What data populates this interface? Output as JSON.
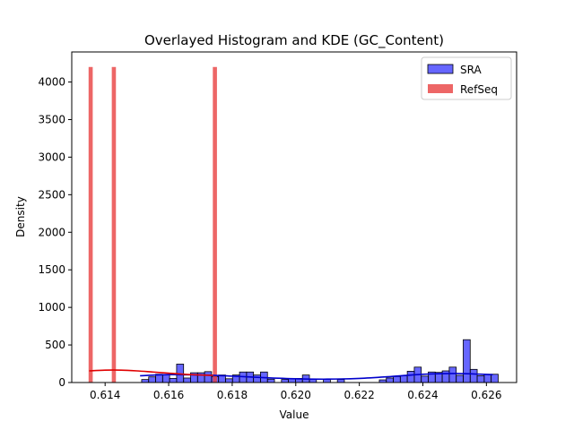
{
  "chart_data": {
    "type": "histogram",
    "title": "Overlayed Histogram and KDE (GC_Content)",
    "xlabel": "Value",
    "ylabel": "Density",
    "xlim": [
      0.61295,
      0.62695
    ],
    "ylim": [
      0,
      4400
    ],
    "x_ticks": [
      0.614,
      0.616,
      0.618,
      0.62,
      0.622,
      0.624,
      0.626
    ],
    "x_tick_labels": [
      "0.614",
      "0.616",
      "0.618",
      "0.620",
      "0.622",
      "0.624",
      "0.626"
    ],
    "y_ticks": [
      0,
      500,
      1000,
      1500,
      2000,
      2500,
      3000,
      3500,
      4000
    ],
    "y_tick_labels": [
      "0",
      "500",
      "1000",
      "1500",
      "2000",
      "2500",
      "3000",
      "3500",
      "4000"
    ],
    "legend": {
      "position": "top-right",
      "entries": [
        "SRA",
        "RefSeq"
      ]
    },
    "series": [
      {
        "name": "SRA",
        "color": "#0000ff",
        "edge_color": "#000000",
        "kde_color": "#0000cc",
        "bin_width": 0.00022,
        "bins": [
          {
            "x": 0.61515,
            "y": 40
          },
          {
            "x": 0.61537,
            "y": 75
          },
          {
            "x": 0.61559,
            "y": 110
          },
          {
            "x": 0.61581,
            "y": 105
          },
          {
            "x": 0.61603,
            "y": 55
          },
          {
            "x": 0.61625,
            "y": 245
          },
          {
            "x": 0.61647,
            "y": 60
          },
          {
            "x": 0.61669,
            "y": 130
          },
          {
            "x": 0.61691,
            "y": 130
          },
          {
            "x": 0.61713,
            "y": 145
          },
          {
            "x": 0.61735,
            "y": 80
          },
          {
            "x": 0.61757,
            "y": 100
          },
          {
            "x": 0.61779,
            "y": 50
          },
          {
            "x": 0.61801,
            "y": 100
          },
          {
            "x": 0.61823,
            "y": 140
          },
          {
            "x": 0.61845,
            "y": 140
          },
          {
            "x": 0.61867,
            "y": 100
          },
          {
            "x": 0.61889,
            "y": 140
          },
          {
            "x": 0.61911,
            "y": 45
          },
          {
            "x": 0.61955,
            "y": 40
          },
          {
            "x": 0.61977,
            "y": 50
          },
          {
            "x": 0.61999,
            "y": 55
          },
          {
            "x": 0.62021,
            "y": 100
          },
          {
            "x": 0.62043,
            "y": 45
          },
          {
            "x": 0.62087,
            "y": 40
          },
          {
            "x": 0.62131,
            "y": 40
          },
          {
            "x": 0.62263,
            "y": 35
          },
          {
            "x": 0.62285,
            "y": 60
          },
          {
            "x": 0.62307,
            "y": 80
          },
          {
            "x": 0.62329,
            "y": 90
          },
          {
            "x": 0.62351,
            "y": 150
          },
          {
            "x": 0.62373,
            "y": 205
          },
          {
            "x": 0.62395,
            "y": 85
          },
          {
            "x": 0.62417,
            "y": 140
          },
          {
            "x": 0.62439,
            "y": 135
          },
          {
            "x": 0.62461,
            "y": 155
          },
          {
            "x": 0.62483,
            "y": 205
          },
          {
            "x": 0.62505,
            "y": 95
          },
          {
            "x": 0.62527,
            "y": 570
          },
          {
            "x": 0.62549,
            "y": 175
          },
          {
            "x": 0.62571,
            "y": 90
          },
          {
            "x": 0.62593,
            "y": 110
          },
          {
            "x": 0.62615,
            "y": 110
          }
        ],
        "kde": {
          "x": [
            0.6151,
            0.616,
            0.617,
            0.618,
            0.619,
            0.62,
            0.621,
            0.622,
            0.623,
            0.624,
            0.625,
            0.6262
          ],
          "y": [
            90,
            105,
            100,
            85,
            65,
            50,
            45,
            55,
            80,
            110,
            120,
            105
          ]
        }
      },
      {
        "name": "RefSeq",
        "color": "#e84040",
        "kde_color": "#e00000",
        "bin_width": 0.00013,
        "bins": [
          {
            "x": 0.61348,
            "y": 4200
          },
          {
            "x": 0.61421,
            "y": 4200
          },
          {
            "x": 0.61739,
            "y": 4200
          }
        ],
        "kde": {
          "x": [
            0.6135,
            0.614,
            0.6145,
            0.615,
            0.6155,
            0.616,
            0.6165,
            0.617,
            0.6174
          ],
          "y": [
            155,
            165,
            165,
            155,
            140,
            125,
            110,
            100,
            95
          ]
        }
      }
    ]
  }
}
